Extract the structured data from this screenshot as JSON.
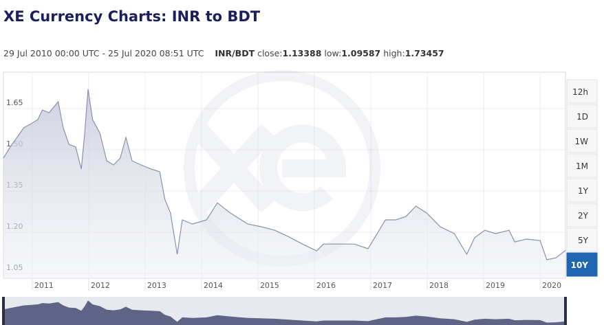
{
  "header": {
    "title": "XE Currency Charts: INR to BDT",
    "date_range": "29 Jul 2010 00:00 UTC - 25 Jul 2020 08:51 UTC",
    "pair": "INR/BDT",
    "stats": [
      {
        "label": "close:",
        "value": 1.13388
      },
      {
        "label": "low:",
        "value": 1.09587
      },
      {
        "label": "high:",
        "value": 1.73457
      }
    ]
  },
  "range_buttons": [
    "12h",
    "1D",
    "1W",
    "1M",
    "1Y",
    "2Y",
    "5Y",
    "10Y"
  ],
  "active_button": "10Y",
  "chart_data": {
    "type": "area",
    "grid": true,
    "color": "#8b8fae",
    "xlim": [
      2010.49,
      2020.45
    ],
    "xticks": [
      2011,
      2012,
      2013,
      2014,
      2015,
      2016,
      2017,
      2018,
      2019,
      2020
    ],
    "ylim": [
      1.0325,
      1.7825
    ],
    "yticks": [
      1.05,
      {
        "value": 1.2,
        "label": "1.20"
      },
      1.35,
      {
        "value": 1.5,
        "label": "1.50"
      },
      1.65
    ],
    "series": [
      {
        "name": "INR/BDT",
        "x": [
          2010.49,
          2010.61,
          2010.73,
          2010.85,
          2010.98,
          2011.1,
          2011.18,
          2011.3,
          2011.46,
          2011.55,
          2011.65,
          2011.77,
          2011.87,
          2011.93,
          2011.99,
          2012.07,
          2012.2,
          2012.32,
          2012.44,
          2012.56,
          2012.66,
          2012.77,
          2012.93,
          2013.11,
          2013.26,
          2013.35,
          2013.45,
          2013.57,
          2013.66,
          2013.84,
          2014.09,
          2014.28,
          2014.51,
          2014.82,
          2015.06,
          2015.3,
          2015.55,
          2015.79,
          2016.04,
          2016.16,
          2016.4,
          2016.71,
          2016.95,
          2017.07,
          2017.26,
          2017.44,
          2017.62,
          2017.8,
          2017.99,
          2018.23,
          2018.48,
          2018.7,
          2018.84,
          2019.02,
          2019.21,
          2019.45,
          2019.55,
          2019.76,
          2020.0,
          2020.12,
          2020.28,
          2020.45
        ],
        "values": [
          1.47,
          1.51,
          1.545,
          1.58,
          1.595,
          1.61,
          1.645,
          1.635,
          1.675,
          1.58,
          1.52,
          1.51,
          1.43,
          1.56,
          1.72,
          1.61,
          1.56,
          1.46,
          1.445,
          1.47,
          1.545,
          1.46,
          1.445,
          1.43,
          1.42,
          1.32,
          1.27,
          1.12,
          1.245,
          1.23,
          1.245,
          1.307,
          1.27,
          1.23,
          1.22,
          1.207,
          1.183,
          1.157,
          1.132,
          1.157,
          1.157,
          1.157,
          1.14,
          1.18,
          1.245,
          1.245,
          1.257,
          1.295,
          1.27,
          1.22,
          1.195,
          1.12,
          1.18,
          1.207,
          1.195,
          1.207,
          1.165,
          1.175,
          1.17,
          1.1,
          1.107,
          1.134
        ]
      }
    ]
  }
}
